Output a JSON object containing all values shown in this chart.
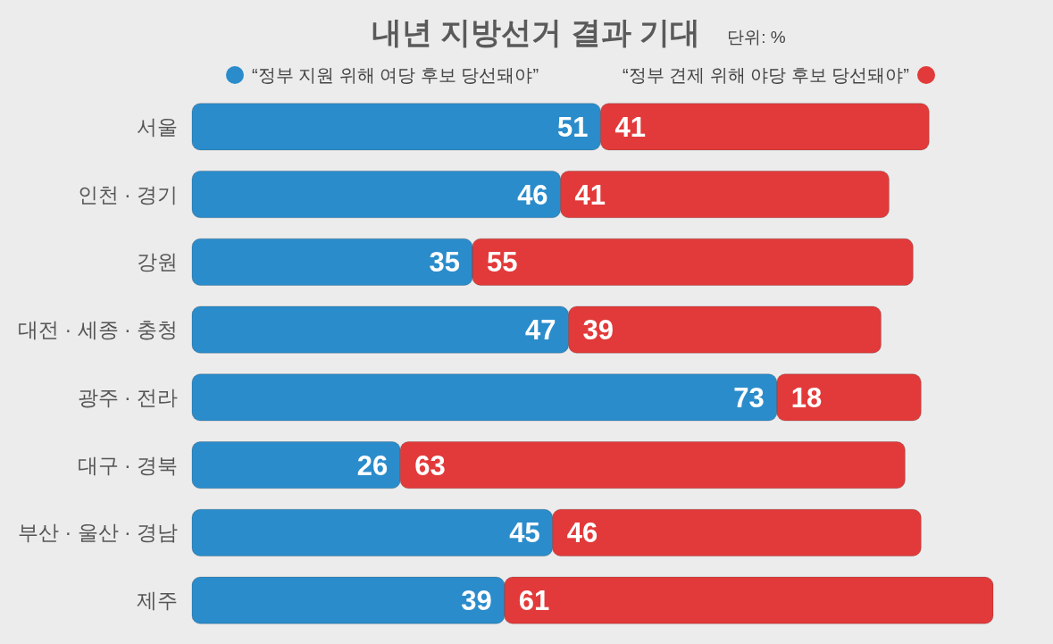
{
  "chart_data": {
    "type": "bar",
    "orientation": "horizontal",
    "stacked": true,
    "title": "내년 지방선거 결과 기대",
    "subtitle": "단위: %",
    "categories": [
      "서울",
      "인천 · 경기",
      "강원",
      "대전 · 세종 · 충청",
      "광주 · 전라",
      "대구 · 경북",
      "부산 · 울산 · 경남",
      "제주"
    ],
    "series": [
      {
        "name": "“정부 지원 위해 여당 후보 당선돼야”",
        "color": "#2a8ccb",
        "values": [
          51,
          46,
          35,
          47,
          73,
          26,
          45,
          39
        ]
      },
      {
        "name": "“정부 견제 위해 야당 후보 당선돼야”",
        "color": "#e23a3a",
        "values": [
          41,
          41,
          55,
          39,
          18,
          63,
          46,
          61
        ]
      }
    ],
    "data_labels": true,
    "legend": "top"
  }
}
